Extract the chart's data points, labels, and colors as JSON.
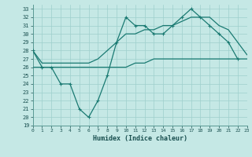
{
  "xlabel": "Humidex (Indice chaleur)",
  "ylabel": "",
  "xlim": [
    0,
    23
  ],
  "ylim": [
    19,
    33.5
  ],
  "yticks": [
    19,
    20,
    21,
    22,
    23,
    24,
    25,
    26,
    27,
    28,
    29,
    30,
    31,
    32,
    33
  ],
  "xticks": [
    0,
    1,
    2,
    3,
    4,
    5,
    6,
    7,
    8,
    9,
    10,
    11,
    12,
    13,
    14,
    15,
    16,
    17,
    18,
    19,
    20,
    21,
    22,
    23
  ],
  "bg_color": "#c5e8e5",
  "grid_color": "#9ecfcc",
  "line_color": "#1a7a72",
  "line1_y": [
    28,
    26,
    26,
    24,
    24,
    21,
    20,
    22,
    25,
    29,
    32,
    31,
    31,
    30,
    30,
    31,
    32,
    33,
    32,
    31,
    30,
    29,
    27,
    null
  ],
  "line2_y": [
    28,
    26.5,
    26.5,
    26.5,
    26.5,
    26.5,
    26.5,
    27,
    28,
    29,
    30,
    30,
    30.5,
    30.5,
    31,
    31,
    31.5,
    32,
    32,
    32,
    31,
    30.5,
    29,
    27.5
  ],
  "line3_y": [
    26,
    26,
    26,
    26,
    26,
    26,
    26,
    26,
    26,
    26,
    26,
    26.5,
    26.5,
    27,
    27,
    27,
    27,
    27,
    27,
    27,
    27,
    27,
    27,
    27
  ]
}
